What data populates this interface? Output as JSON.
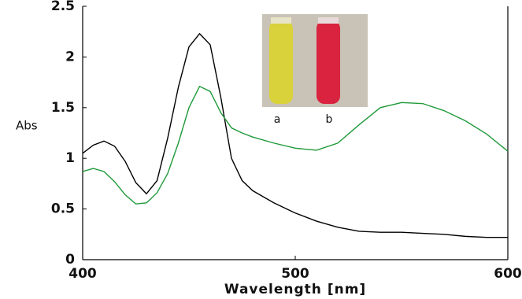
{
  "chart_data": {
    "type": "line",
    "xlabel": "Wavelength [nm]",
    "ylabel": "Abs",
    "x": [
      400,
      405,
      410,
      415,
      420,
      425,
      430,
      435,
      440,
      445,
      450,
      455,
      460,
      465,
      470,
      475,
      480,
      490,
      500,
      510,
      520,
      530,
      540,
      550,
      560,
      570,
      580,
      590,
      600
    ],
    "series": [
      {
        "color": "#000000",
        "values": [
          1.05,
          1.13,
          1.17,
          1.12,
          0.97,
          0.76,
          0.65,
          0.78,
          1.2,
          1.7,
          2.1,
          2.23,
          2.12,
          1.6,
          1.0,
          0.78,
          0.68,
          0.56,
          0.46,
          0.38,
          0.32,
          0.28,
          0.27,
          0.27,
          0.26,
          0.25,
          0.23,
          0.22,
          0.22
        ]
      },
      {
        "color": "#1f9a3a",
        "values": [
          0.87,
          0.9,
          0.87,
          0.77,
          0.64,
          0.55,
          0.56,
          0.66,
          0.85,
          1.15,
          1.5,
          1.71,
          1.66,
          1.45,
          1.3,
          1.25,
          1.21,
          1.15,
          1.1,
          1.08,
          1.15,
          1.33,
          1.5,
          1.55,
          1.54,
          1.47,
          1.37,
          1.24,
          1.07
        ]
      }
    ],
    "xlim": [
      400,
      600
    ],
    "xticks": [
      400,
      500,
      600
    ],
    "ylim": [
      0,
      2.5
    ],
    "yticks": [
      0,
      0.5,
      1,
      1.5,
      2,
      2.5
    ],
    "annotations": [
      "a",
      "b"
    ]
  }
}
